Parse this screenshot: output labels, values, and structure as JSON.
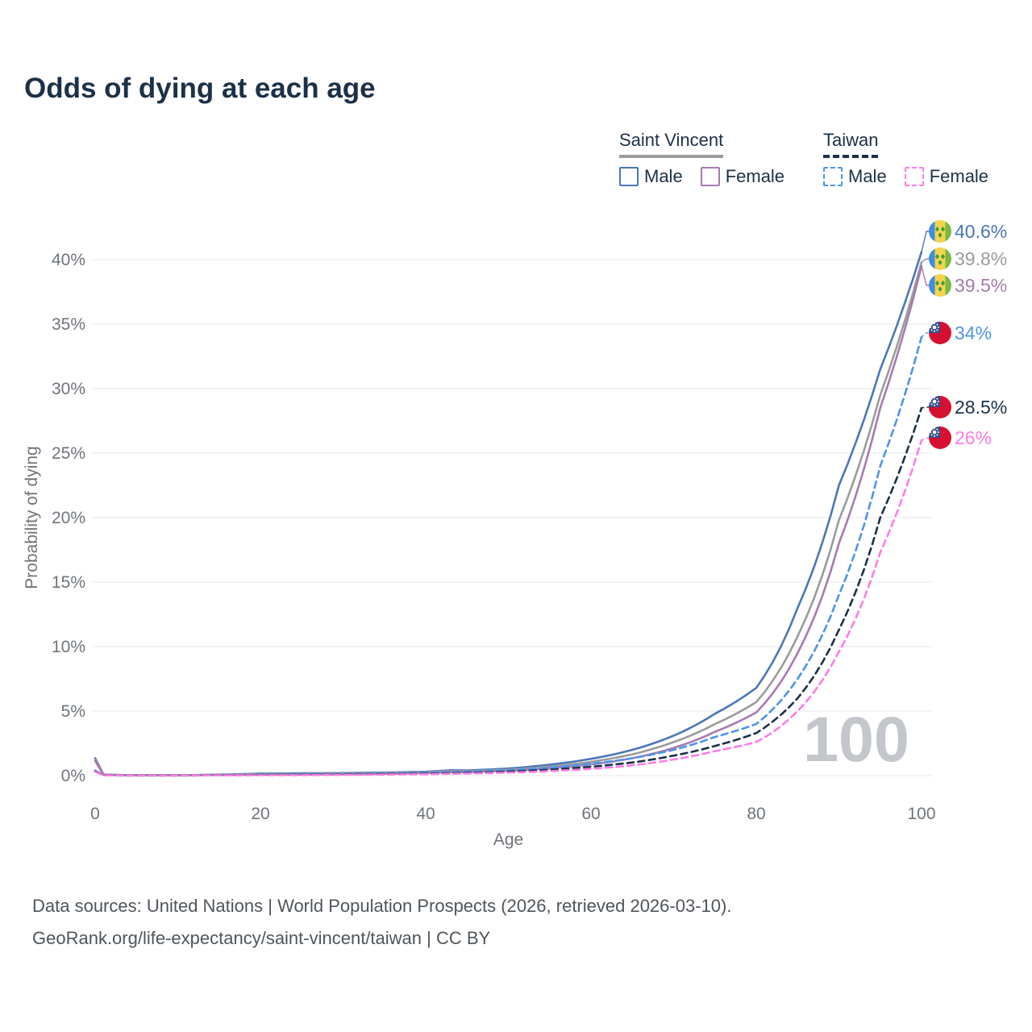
{
  "title": "Odds of dying at each age",
  "age_counter": "100",
  "legend": {
    "groups": [
      {
        "label": "Saint Vincent",
        "line_style": "solid",
        "line_color": "#9b9b9b",
        "items": [
          {
            "label": "Male",
            "color": "#4a77b8",
            "dashed": false
          },
          {
            "label": "Female",
            "color": "#a87ab1",
            "dashed": false
          }
        ]
      },
      {
        "label": "Taiwan",
        "line_style": "dashed",
        "line_color": "#1c3148",
        "items": [
          {
            "label": "Male",
            "color": "#4d94eb",
            "dashed": true
          },
          {
            "label": "Female",
            "color": "#ff7ce3",
            "dashed": true
          }
        ]
      }
    ]
  },
  "footer": {
    "line1": "Data sources: United Nations | World Population Prospects (2026, retrieved 2026-03-10).",
    "line2": "GeoRank.org/life-expectancy/saint-vincent/taiwan | CC BY"
  },
  "chart_data": {
    "type": "line",
    "title": "Odds of dying at each age",
    "xlabel": "Age",
    "ylabel": "Probability of dying",
    "x_ticks": [
      0,
      20,
      40,
      60,
      80,
      100
    ],
    "y_tick_labels": [
      "0%",
      "5%",
      "10%",
      "15%",
      "20%",
      "25%",
      "30%",
      "35%",
      "40%"
    ],
    "x_axis_range": [
      0,
      100
    ],
    "y_axis_range_percent": [
      0,
      42
    ],
    "grid": true,
    "legend_position": "top-right",
    "anchor_ages": [
      0,
      1,
      5,
      10,
      15,
      20,
      25,
      30,
      35,
      40,
      43,
      45,
      50,
      55,
      60,
      65,
      70,
      75,
      80,
      85,
      90,
      95,
      100
    ],
    "flag_colors": {
      "sv": [
        "#3f8ce0",
        "#f4d44e",
        "#78b843",
        "#3d9b35"
      ],
      "tw": [
        "#d61030",
        "#33508c",
        "#ffffff"
      ]
    },
    "series": [
      {
        "id": "sv-male",
        "name": "Saint Vincent Male",
        "country": "Saint Vincent",
        "sex": "Male",
        "color": "#4a77b8",
        "dashed": false,
        "flag": "sv",
        "flag_icon": "saint-vincent-flag-icon",
        "end_label": "40.6%",
        "end_value_percent": 40.6,
        "values_percent": [
          1.35,
          0.09,
          0.03,
          0.03,
          0.08,
          0.16,
          0.18,
          0.2,
          0.24,
          0.3,
          0.42,
          0.4,
          0.55,
          0.85,
          1.3,
          2.0,
          3.1,
          4.8,
          6.8,
          13.0,
          22.5,
          31.5,
          40.6
        ]
      },
      {
        "id": "sv-both",
        "name": "Saint Vincent Both sexes",
        "country": "Saint Vincent",
        "sex": "Both",
        "color": "#9b9b9b",
        "dashed": false,
        "flag": "sv",
        "flag_icon": "saint-vincent-flag-icon",
        "end_label": "39.8%",
        "end_value_percent": 39.8,
        "values_percent": [
          1.25,
          0.08,
          0.025,
          0.025,
          0.06,
          0.11,
          0.13,
          0.15,
          0.19,
          0.25,
          0.35,
          0.33,
          0.46,
          0.7,
          1.07,
          1.65,
          2.6,
          4.0,
          5.7,
          10.8,
          19.8,
          29.5,
          39.8
        ]
      },
      {
        "id": "sv-female",
        "name": "Saint Vincent Female",
        "country": "Saint Vincent",
        "sex": "Female",
        "color": "#a87ab1",
        "dashed": false,
        "flag": "sv",
        "flag_icon": "saint-vincent-flag-icon",
        "end_label": "39.5%",
        "end_value_percent": 39.5,
        "values_percent": [
          1.15,
          0.07,
          0.02,
          0.02,
          0.04,
          0.07,
          0.08,
          0.1,
          0.14,
          0.2,
          0.28,
          0.27,
          0.38,
          0.57,
          0.87,
          1.35,
          2.15,
          3.4,
          4.9,
          9.5,
          18.0,
          28.5,
          39.5
        ]
      },
      {
        "id": "tw-male",
        "name": "Taiwan Male",
        "country": "Taiwan",
        "sex": "Male",
        "color": "#4d94eb",
        "dashed": true,
        "flag": "tw",
        "flag_icon": "taiwan-flag-icon",
        "end_label": "34%",
        "end_value_percent": 34,
        "values_percent": [
          0.38,
          0.025,
          0.012,
          0.012,
          0.035,
          0.07,
          0.09,
          0.11,
          0.15,
          0.21,
          0.26,
          0.29,
          0.42,
          0.62,
          0.92,
          1.35,
          2.0,
          3.0,
          4.0,
          7.5,
          14.0,
          24.0,
          34.0
        ]
      },
      {
        "id": "tw-both",
        "name": "Taiwan Both sexes",
        "country": "Taiwan",
        "sex": "Both",
        "color": "#1c3148",
        "dashed": true,
        "flag": "tw",
        "flag_icon": "taiwan-flag-icon",
        "end_label": "28.5%",
        "end_value_percent": 28.5,
        "values_percent": [
          0.33,
          0.022,
          0.01,
          0.01,
          0.025,
          0.05,
          0.06,
          0.08,
          0.11,
          0.15,
          0.19,
          0.21,
          0.31,
          0.46,
          0.69,
          1.02,
          1.55,
          2.3,
          3.3,
          6.0,
          11.3,
          20.0,
          28.5
        ]
      },
      {
        "id": "tw-female",
        "name": "Taiwan Female",
        "country": "Taiwan",
        "sex": "Female",
        "color": "#ff7ce3",
        "dashed": true,
        "flag": "tw",
        "flag_icon": "taiwan-flag-icon",
        "end_label": "26%",
        "end_value_percent": 26,
        "values_percent": [
          0.3,
          0.02,
          0.009,
          0.009,
          0.018,
          0.032,
          0.04,
          0.055,
          0.08,
          0.11,
          0.14,
          0.16,
          0.23,
          0.35,
          0.52,
          0.8,
          1.25,
          1.9,
          2.6,
          5.0,
          9.6,
          17.3,
          26.0
        ]
      }
    ]
  }
}
